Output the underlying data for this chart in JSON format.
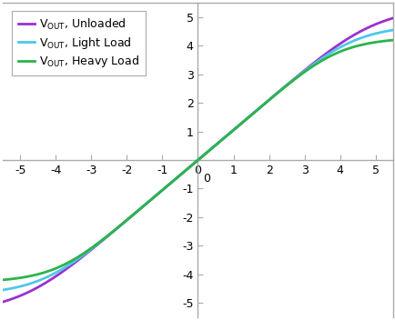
{
  "title": "",
  "xlim": [
    -5.5,
    5.5
  ],
  "ylim": [
    -5.5,
    5.5
  ],
  "xticks": [
    -5,
    -4,
    -3,
    -2,
    -1,
    0,
    1,
    2,
    3,
    4,
    5
  ],
  "yticks": [
    -5,
    -4,
    -3,
    -2,
    -1,
    0,
    1,
    2,
    3,
    4,
    5
  ],
  "background_color": "#ffffff",
  "border_color": "#aaaaaa",
  "lines": [
    {
      "label": "V$_\\mathregular{OUT}$, Unloaded",
      "color": "#9b30d0",
      "linewidth": 2.0,
      "type": "unloaded",
      "Vsat": 5.4,
      "k": 1.05
    },
    {
      "label": "V$_\\mathregular{OUT}$, Light Load",
      "color": "#4dc8e8",
      "linewidth": 2.0,
      "type": "light",
      "Vsat": 4.75,
      "k": 1.05
    },
    {
      "label": "V$_\\mathregular{OUT}$, Heavy Load",
      "color": "#2db34a",
      "linewidth": 2.0,
      "type": "heavy",
      "Vsat": 4.3,
      "k": 1.05
    }
  ],
  "figsize": [
    4.35,
    3.52
  ],
  "dpi": 100,
  "legend_fontsize": 9,
  "tick_fontsize": 9,
  "axis_linewidth": 0.8
}
